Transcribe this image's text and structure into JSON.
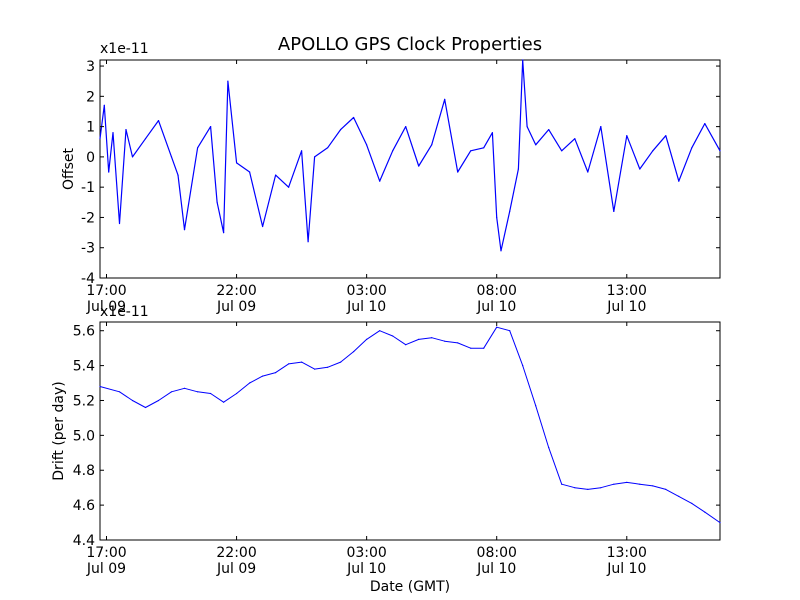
{
  "figure": {
    "title": "APOLLO GPS Clock Properties"
  },
  "chart_data": [
    {
      "type": "line",
      "xlabel": "",
      "ylabel": "Offset",
      "y_multiplier": "x1e-11",
      "xlim": [
        "2009-07-09 16:45",
        "2009-07-10 16:35"
      ],
      "ylim": [
        -4,
        3.2
      ],
      "yticks": [
        -4,
        -3,
        -2,
        -1,
        0,
        1,
        2,
        3
      ],
      "xticks": [
        {
          "time": "2009-07-09 17:00",
          "line1": "17:00",
          "line2": "Jul 09"
        },
        {
          "time": "2009-07-09 22:00",
          "line1": "22:00",
          "line2": "Jul 09"
        },
        {
          "time": "2009-07-10 03:00",
          "line1": "03:00",
          "line2": "Jul 10"
        },
        {
          "time": "2009-07-10 08:00",
          "line1": "08:00",
          "line2": "Jul 10"
        },
        {
          "time": "2009-07-10 13:00",
          "line1": "13:00",
          "line2": "Jul 10"
        }
      ],
      "grid": false,
      "color": "#0000ff",
      "series": [
        {
          "x": [
            "2009-07-09 16:45",
            "2009-07-09 16:55",
            "2009-07-09 17:05",
            "2009-07-09 17:15",
            "2009-07-09 17:30",
            "2009-07-09 17:45",
            "2009-07-09 18:00",
            "2009-07-09 18:30",
            "2009-07-09 19:00",
            "2009-07-09 19:30",
            "2009-07-09 19:45",
            "2009-07-09 20:00",
            "2009-07-09 20:30",
            "2009-07-09 21:00",
            "2009-07-09 21:15",
            "2009-07-09 21:30",
            "2009-07-09 21:40",
            "2009-07-09 22:00",
            "2009-07-09 22:30",
            "2009-07-09 23:00",
            "2009-07-09 23:30",
            "2009-07-10 00:00",
            "2009-07-10 00:30",
            "2009-07-10 00:45",
            "2009-07-10 01:00",
            "2009-07-10 01:30",
            "2009-07-10 02:00",
            "2009-07-10 02:30",
            "2009-07-10 03:00",
            "2009-07-10 03:30",
            "2009-07-10 04:00",
            "2009-07-10 04:30",
            "2009-07-10 05:00",
            "2009-07-10 05:30",
            "2009-07-10 06:00",
            "2009-07-10 06:30",
            "2009-07-10 07:00",
            "2009-07-10 07:30",
            "2009-07-10 07:50",
            "2009-07-10 08:00",
            "2009-07-10 08:10",
            "2009-07-10 08:30",
            "2009-07-10 08:50",
            "2009-07-10 09:00",
            "2009-07-10 09:10",
            "2009-07-10 09:30",
            "2009-07-10 10:00",
            "2009-07-10 10:30",
            "2009-07-10 11:00",
            "2009-07-10 11:30",
            "2009-07-10 12:00",
            "2009-07-10 12:30",
            "2009-07-10 13:00",
            "2009-07-10 13:30",
            "2009-07-10 14:00",
            "2009-07-10 14:30",
            "2009-07-10 15:00",
            "2009-07-10 15:30",
            "2009-07-10 16:00",
            "2009-07-10 16:35"
          ],
          "values": [
            0.6,
            1.7,
            -0.5,
            0.8,
            -2.2,
            0.9,
            0.0,
            0.6,
            1.2,
            0.0,
            -0.6,
            -2.4,
            0.3,
            1.0,
            -1.5,
            -2.5,
            2.5,
            -0.2,
            -0.5,
            -2.3,
            -0.6,
            -1.0,
            0.2,
            -2.8,
            0.0,
            0.3,
            0.9,
            1.3,
            0.4,
            -0.8,
            0.2,
            1.0,
            -0.3,
            0.4,
            1.9,
            -0.5,
            0.2,
            0.3,
            0.8,
            -2.0,
            -3.1,
            -1.8,
            -0.4,
            3.2,
            1.0,
            0.4,
            0.9,
            0.2,
            0.6,
            -0.5,
            1.0,
            -1.8,
            0.7,
            -0.4,
            0.2,
            0.7,
            -0.8,
            0.3,
            1.1,
            0.2
          ]
        }
      ]
    },
    {
      "type": "line",
      "xlabel": "Date (GMT)",
      "ylabel": "Drift (per day)",
      "y_multiplier": "x1e-11",
      "xlim": [
        "2009-07-09 16:45",
        "2009-07-10 16:35"
      ],
      "ylim": [
        4.4,
        5.65
      ],
      "yticks": [
        4.4,
        4.6,
        4.8,
        5.0,
        5.2,
        5.4,
        5.6
      ],
      "ytick_labels": [
        "4.4",
        "4.6",
        "4.8",
        "5.0",
        "5.2",
        "5.4",
        "5.6"
      ],
      "xticks": [
        {
          "time": "2009-07-09 17:00",
          "line1": "17:00",
          "line2": "Jul 09"
        },
        {
          "time": "2009-07-09 22:00",
          "line1": "22:00",
          "line2": "Jul 09"
        },
        {
          "time": "2009-07-10 03:00",
          "line1": "03:00",
          "line2": "Jul 10"
        },
        {
          "time": "2009-07-10 08:00",
          "line1": "08:00",
          "line2": "Jul 10"
        },
        {
          "time": "2009-07-10 13:00",
          "line1": "13:00",
          "line2": "Jul 10"
        }
      ],
      "grid": false,
      "color": "#0000ff",
      "series": [
        {
          "x": [
            "2009-07-09 16:45",
            "2009-07-09 17:30",
            "2009-07-09 18:00",
            "2009-07-09 18:30",
            "2009-07-09 19:00",
            "2009-07-09 19:30",
            "2009-07-09 20:00",
            "2009-07-09 20:30",
            "2009-07-09 21:00",
            "2009-07-09 21:30",
            "2009-07-09 22:00",
            "2009-07-09 22:30",
            "2009-07-09 23:00",
            "2009-07-09 23:30",
            "2009-07-10 00:00",
            "2009-07-10 00:30",
            "2009-07-10 01:00",
            "2009-07-10 01:30",
            "2009-07-10 02:00",
            "2009-07-10 02:30",
            "2009-07-10 03:00",
            "2009-07-10 03:30",
            "2009-07-10 04:00",
            "2009-07-10 04:30",
            "2009-07-10 05:00",
            "2009-07-10 05:30",
            "2009-07-10 06:00",
            "2009-07-10 06:30",
            "2009-07-10 07:00",
            "2009-07-10 07:30",
            "2009-07-10 08:00",
            "2009-07-10 08:30",
            "2009-07-10 09:00",
            "2009-07-10 09:30",
            "2009-07-10 10:00",
            "2009-07-10 10:30",
            "2009-07-10 11:00",
            "2009-07-10 11:30",
            "2009-07-10 12:00",
            "2009-07-10 12:30",
            "2009-07-10 13:00",
            "2009-07-10 13:30",
            "2009-07-10 14:00",
            "2009-07-10 14:30",
            "2009-07-10 15:00",
            "2009-07-10 15:30",
            "2009-07-10 16:00",
            "2009-07-10 16:35"
          ],
          "values": [
            5.28,
            5.25,
            5.2,
            5.16,
            5.2,
            5.25,
            5.27,
            5.25,
            5.24,
            5.19,
            5.24,
            5.3,
            5.34,
            5.36,
            5.41,
            5.42,
            5.38,
            5.39,
            5.42,
            5.48,
            5.55,
            5.6,
            5.57,
            5.52,
            5.55,
            5.56,
            5.54,
            5.53,
            5.5,
            5.5,
            5.62,
            5.6,
            5.4,
            5.17,
            4.93,
            4.72,
            4.7,
            4.69,
            4.7,
            4.72,
            4.73,
            4.72,
            4.71,
            4.69,
            4.65,
            4.61,
            4.56,
            4.5
          ]
        }
      ]
    }
  ]
}
